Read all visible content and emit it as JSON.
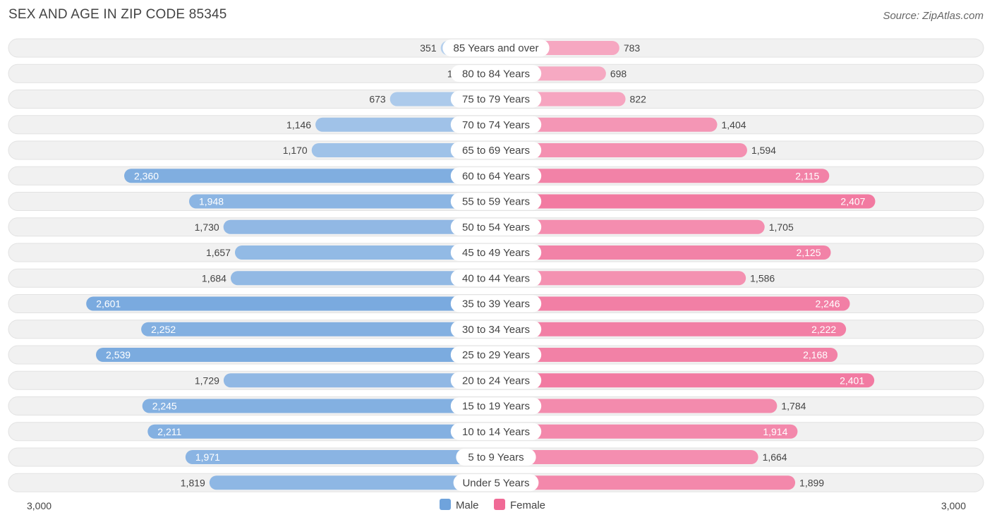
{
  "chart_data": {
    "type": "bar",
    "orientation": "horizontal-diverging",
    "title": "SEX AND AGE IN ZIP CODE 85345",
    "source": "Source: ZipAtlas.com",
    "categories": [
      "85 Years and over",
      "80 to 84 Years",
      "75 to 79 Years",
      "70 to 74 Years",
      "65 to 69 Years",
      "60 to 64 Years",
      "55 to 59 Years",
      "50 to 54 Years",
      "45 to 49 Years",
      "40 to 44 Years",
      "35 to 39 Years",
      "30 to 34 Years",
      "25 to 29 Years",
      "20 to 24 Years",
      "15 to 19 Years",
      "10 to 14 Years",
      "5 to 9 Years",
      "Under 5 Years"
    ],
    "series": [
      {
        "name": "Male",
        "color": "#6fa3dc",
        "values": [
          351,
          178,
          673,
          1146,
          1170,
          2360,
          1948,
          1730,
          1657,
          1684,
          2601,
          2252,
          2539,
          1729,
          2245,
          2211,
          1971,
          1819
        ],
        "labels": [
          "351",
          "178",
          "673",
          "1,146",
          "1,170",
          "2,360",
          "1,948",
          "1,730",
          "1,657",
          "1,684",
          "2,601",
          "2,252",
          "2,539",
          "1,729",
          "2,245",
          "2,211",
          "1,971",
          "1,819"
        ]
      },
      {
        "name": "Female",
        "color": "#f06a96",
        "values": [
          783,
          698,
          822,
          1404,
          1594,
          2115,
          2407,
          1705,
          2125,
          1586,
          2246,
          2222,
          2168,
          2401,
          1784,
          1914,
          1664,
          1899
        ],
        "labels": [
          "783",
          "698",
          "822",
          "1,404",
          "1,594",
          "2,115",
          "2,407",
          "1,705",
          "2,125",
          "1,586",
          "2,246",
          "2,222",
          "2,168",
          "2,401",
          "1,784",
          "1,914",
          "1,664",
          "1,899"
        ]
      }
    ],
    "axis": {
      "min_label": "3,000",
      "max_label": "3,000",
      "max": 3000
    },
    "legend": {
      "position": "bottom-center",
      "items": [
        "Male",
        "Female"
      ]
    }
  }
}
